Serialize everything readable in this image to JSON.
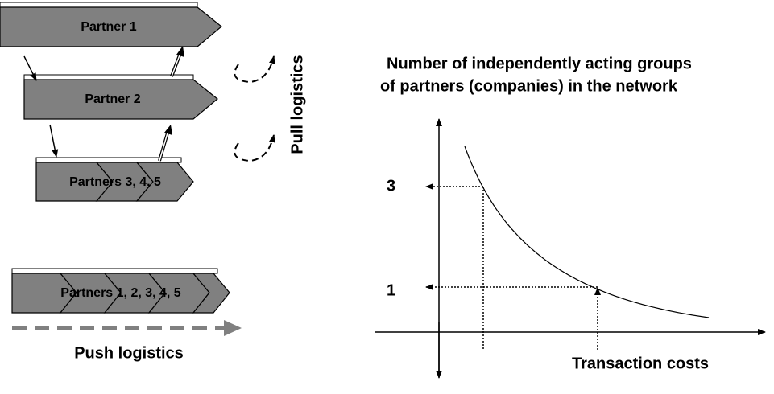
{
  "left": {
    "partner1": "Partner 1",
    "partner2": "Partner 2",
    "partners345": "Partners 3, 4, 5",
    "pull": "Pull logistics",
    "partners12345": "Partners 1, 2, 3, 4, 5",
    "push": "Push logistics"
  },
  "right": {
    "title_line1": "Number of independently acting groups",
    "title_line2": "of partners (companies) in the network",
    "label_3": "3",
    "label_1": "1",
    "x_label": "Transaction costs"
  }
}
